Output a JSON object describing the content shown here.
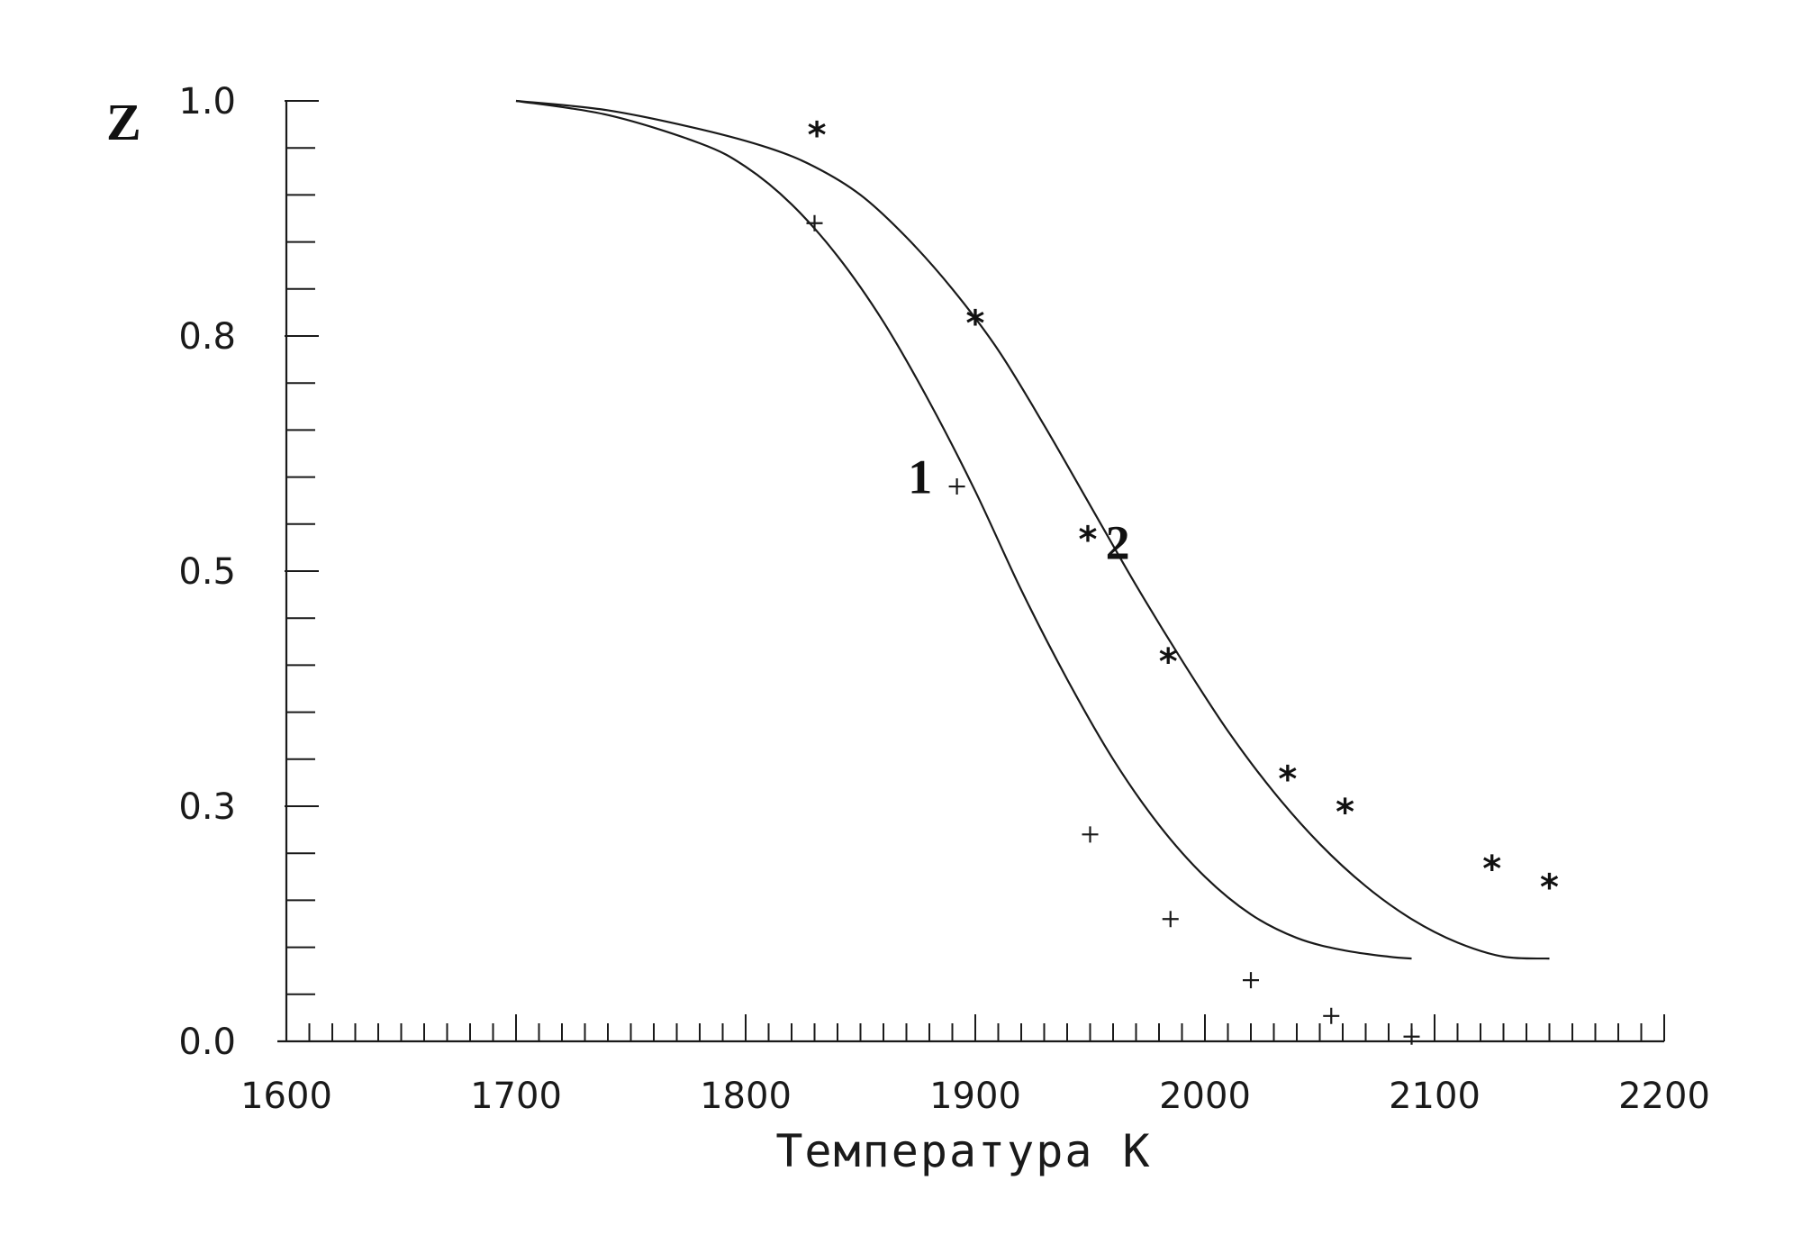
{
  "chart_data": {
    "type": "line",
    "ylabel": "Z",
    "xlabel": "Температура  К",
    "xlim": [
      1600,
      2200
    ],
    "ylim": [
      0.0,
      1.0
    ],
    "x_ticks": [
      1600,
      1700,
      1800,
      1900,
      2000,
      2100,
      2200
    ],
    "x_tick_labels": [
      "1600",
      "1700",
      "1800",
      "1900",
      "2000",
      "2100",
      "2200"
    ],
    "y_ticks": [
      0.0,
      0.25,
      0.5,
      0.75,
      1.0
    ],
    "y_tick_labels": [
      "0.0",
      "0.3",
      "0.5",
      "0.8",
      "1.0"
    ],
    "series": [
      {
        "name": "1",
        "kind": "line",
        "x": [
          1700,
          1740,
          1780,
          1800,
          1820,
          1840,
          1860,
          1880,
          1900,
          1920,
          1940,
          1960,
          1980,
          2000,
          2020,
          2040,
          2060,
          2080,
          2090
        ],
        "values": [
          1.0,
          0.985,
          0.955,
          0.93,
          0.89,
          0.835,
          0.765,
          0.68,
          0.585,
          0.48,
          0.385,
          0.3,
          0.23,
          0.175,
          0.135,
          0.11,
          0.097,
          0.09,
          0.088
        ]
      },
      {
        "name": "2",
        "kind": "line",
        "x": [
          1700,
          1740,
          1780,
          1810,
          1830,
          1850,
          1870,
          1890,
          1910,
          1930,
          1950,
          1970,
          1990,
          2010,
          2030,
          2050,
          2070,
          2090,
          2110,
          2130,
          2150
        ],
        "values": [
          1.0,
          0.99,
          0.97,
          0.95,
          0.93,
          0.9,
          0.855,
          0.8,
          0.735,
          0.655,
          0.57,
          0.485,
          0.405,
          0.33,
          0.265,
          0.21,
          0.165,
          0.13,
          0.105,
          0.09,
          0.088
        ]
      },
      {
        "name": "1",
        "kind": "scatter",
        "marker": "+",
        "x": [
          1830,
          1892,
          1950,
          1985,
          2020,
          2055,
          2090
        ],
        "values": [
          0.87,
          0.59,
          0.22,
          0.13,
          0.065,
          0.027,
          0.005
        ]
      },
      {
        "name": "2",
        "kind": "scatter",
        "marker": "*",
        "x": [
          1831,
          1900,
          1949,
          1984,
          2036,
          2061,
          2125,
          2150
        ],
        "values": [
          0.965,
          0.765,
          0.535,
          0.405,
          0.28,
          0.245,
          0.185,
          0.165
        ]
      }
    ],
    "curve_labels": [
      {
        "text": "1",
        "x": 1876,
        "y": 0.6
      },
      {
        "text": "2",
        "x": 1962,
        "y": 0.53
      }
    ]
  }
}
